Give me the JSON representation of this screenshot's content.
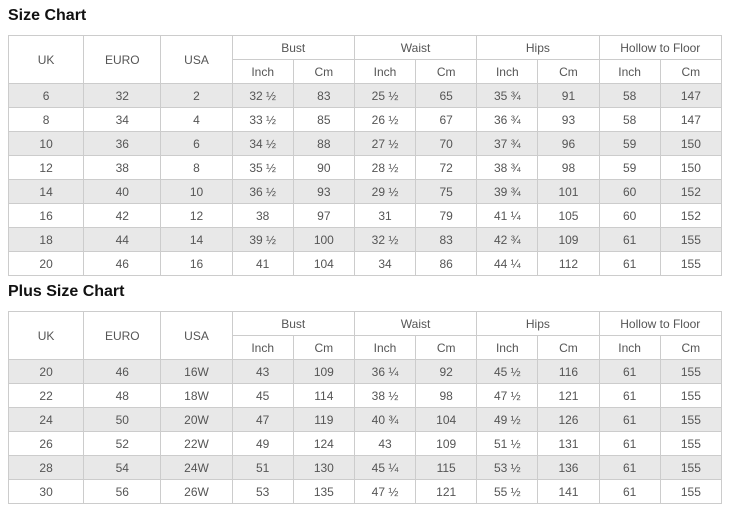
{
  "colors": {
    "border": "#cccccc",
    "row_shaded": "#e8e8e8",
    "row_plain": "#ffffff",
    "text": "#555555",
    "title_text": "#111111"
  },
  "tables": [
    {
      "title": "Size Chart",
      "size_headers": [
        "UK",
        "EURO",
        "USA"
      ],
      "group_headers": [
        "Bust",
        "Waist",
        "Hips",
        "Hollow to Floor"
      ],
      "unit_headers": [
        "Inch",
        "Cm"
      ],
      "rows": [
        [
          "6",
          "32",
          "2",
          "32 ½",
          "83",
          "25 ½",
          "65",
          "35 ¾",
          "91",
          "58",
          "147"
        ],
        [
          "8",
          "34",
          "4",
          "33 ½",
          "85",
          "26 ½",
          "67",
          "36 ¾",
          "93",
          "58",
          "147"
        ],
        [
          "10",
          "36",
          "6",
          "34 ½",
          "88",
          "27 ½",
          "70",
          "37 ¾",
          "96",
          "59",
          "150"
        ],
        [
          "12",
          "38",
          "8",
          "35 ½",
          "90",
          "28 ½",
          "72",
          "38 ¾",
          "98",
          "59",
          "150"
        ],
        [
          "14",
          "40",
          "10",
          "36 ½",
          "93",
          "29 ½",
          "75",
          "39 ¾",
          "101",
          "60",
          "152"
        ],
        [
          "16",
          "42",
          "12",
          "38",
          "97",
          "31",
          "79",
          "41 ¼",
          "105",
          "60",
          "152"
        ],
        [
          "18",
          "44",
          "14",
          "39 ½",
          "100",
          "32 ½",
          "83",
          "42 ¾",
          "109",
          "61",
          "155"
        ],
        [
          "20",
          "46",
          "16",
          "41",
          "104",
          "34",
          "86",
          "44 ¼",
          "112",
          "61",
          "155"
        ]
      ]
    },
    {
      "title": "Plus Size Chart",
      "size_headers": [
        "UK",
        "EURO",
        "USA"
      ],
      "group_headers": [
        "Bust",
        "Waist",
        "Hips",
        "Hollow to Floor"
      ],
      "unit_headers": [
        "Inch",
        "Cm"
      ],
      "rows": [
        [
          "20",
          "46",
          "16W",
          "43",
          "109",
          "36 ¼",
          "92",
          "45 ½",
          "116",
          "61",
          "155"
        ],
        [
          "22",
          "48",
          "18W",
          "45",
          "114",
          "38 ½",
          "98",
          "47 ½",
          "121",
          "61",
          "155"
        ],
        [
          "24",
          "50",
          "20W",
          "47",
          "119",
          "40 ¾",
          "104",
          "49 ½",
          "126",
          "61",
          "155"
        ],
        [
          "26",
          "52",
          "22W",
          "49",
          "124",
          "43",
          "109",
          "51 ½",
          "131",
          "61",
          "155"
        ],
        [
          "28",
          "54",
          "24W",
          "51",
          "130",
          "45 ¼",
          "115",
          "53 ½",
          "136",
          "61",
          "155"
        ],
        [
          "30",
          "56",
          "26W",
          "53",
          "135",
          "47 ½",
          "121",
          "55 ½",
          "141",
          "61",
          "155"
        ]
      ]
    }
  ]
}
